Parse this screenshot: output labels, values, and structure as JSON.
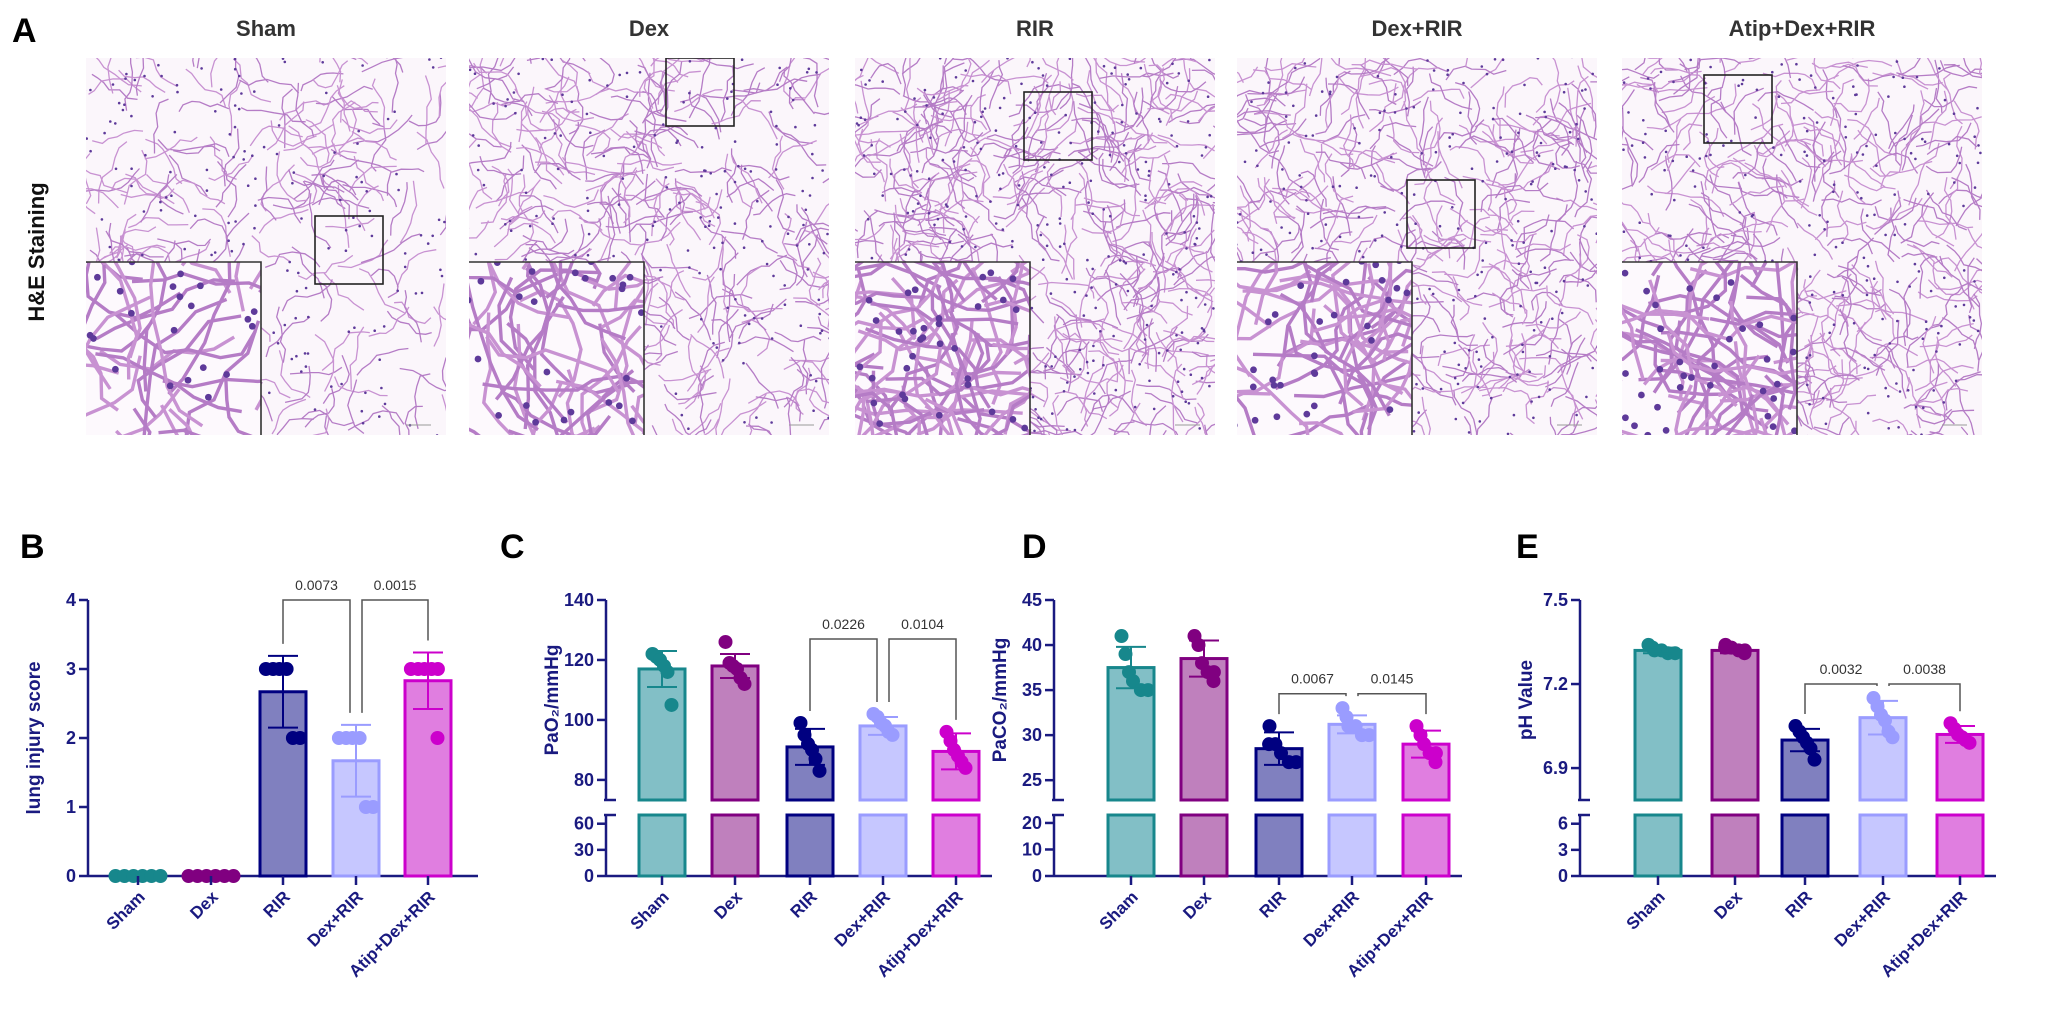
{
  "panel_labels": {
    "a": "A",
    "b": "B",
    "c": "C",
    "d": "D",
    "e": "E"
  },
  "histology": {
    "row_label": "H&E Staining",
    "groups": [
      "Sham",
      "Dex",
      "RIR",
      "Dex+RIR",
      "Atip+Dex+RIR"
    ]
  },
  "colors": {
    "axis": "#1a1a80",
    "groups": [
      {
        "stroke": "#17878c",
        "fill": "#82bfc6"
      },
      {
        "stroke": "#800080",
        "fill": "#bf80bd"
      },
      {
        "stroke": "#000080",
        "fill": "#8080bf"
      },
      {
        "stroke": "#9a9cff",
        "fill": "#c6c7ff"
      },
      {
        "stroke": "#cc00cc",
        "fill": "#e07ee0"
      }
    ]
  },
  "chart_data": [
    {
      "type": "bar",
      "panel": "B",
      "ylabel": "lung injury score",
      "categories": [
        "Sham",
        "Dex",
        "RIR",
        "Dex+RIR",
        "Atip+Dex+RIR"
      ],
      "values": [
        0,
        0,
        2.67,
        1.67,
        2.83
      ],
      "sd": [
        0,
        0,
        0.52,
        0.52,
        0.41
      ],
      "points": [
        [
          0,
          0,
          0,
          0,
          0,
          0
        ],
        [
          0,
          0,
          0,
          0,
          0,
          0
        ],
        [
          3,
          3,
          3,
          3,
          2,
          2
        ],
        [
          2,
          2,
          2,
          2,
          1,
          1
        ],
        [
          3,
          3,
          3,
          3,
          3,
          2
        ]
      ],
      "ylim": [
        0,
        4
      ],
      "yticks": [
        "0",
        "1",
        "2",
        "3",
        "4"
      ],
      "ytick_values": [
        0,
        1,
        2,
        3,
        4
      ],
      "axis_break": null,
      "comparisons": [
        {
          "from": "RIR",
          "to": "Dex+RIR",
          "p": "0.0073"
        },
        {
          "from": "Dex+RIR",
          "to": "Atip+Dex+RIR",
          "p": "0.0015"
        }
      ]
    },
    {
      "type": "bar",
      "panel": "C",
      "ylabel": "PaO₂/mmHg",
      "categories": [
        "Sham",
        "Dex",
        "RIR",
        "Dex+RIR",
        "Atip+Dex+RIR"
      ],
      "values": [
        117,
        118,
        91,
        98,
        89.5
      ],
      "sd": [
        6,
        4,
        6,
        3,
        6
      ],
      "points": [
        [
          122,
          121,
          120,
          118,
          116,
          105
        ],
        [
          126,
          119,
          118,
          117,
          114,
          112
        ],
        [
          99,
          95,
          92,
          90,
          87,
          83
        ],
        [
          102,
          101,
          99,
          98,
          96,
          95
        ],
        [
          96,
          93,
          90,
          88,
          86,
          84
        ]
      ],
      "ylim": [
        0,
        140
      ],
      "yticks": [
        "0",
        "30",
        "60",
        "80",
        "100",
        "120",
        "140"
      ],
      "ytick_values": [
        0,
        30,
        60,
        80,
        100,
        120,
        140
      ],
      "axis_break": {
        "lower": [
          0,
          70
        ],
        "upper": [
          73.3,
          140
        ]
      },
      "comparisons": [
        {
          "from": "RIR",
          "to": "Dex+RIR",
          "p": "0.0226"
        },
        {
          "from": "Dex+RIR",
          "to": "Atip+Dex+RIR",
          "p": "0.0104"
        }
      ]
    },
    {
      "type": "bar",
      "panel": "D",
      "ylabel": "PaCO₂/mmHg",
      "categories": [
        "Sham",
        "Dex",
        "RIR",
        "Dex+RIR",
        "Atip+Dex+RIR"
      ],
      "values": [
        37.5,
        38.5,
        28.5,
        31.2,
        29
      ],
      "sd": [
        2.3,
        2,
        1.8,
        1,
        1.5
      ],
      "points": [
        [
          41,
          39,
          37,
          36,
          35,
          35
        ],
        [
          41,
          40,
          38,
          37,
          37,
          36
        ],
        [
          31,
          29,
          29,
          28,
          27,
          27
        ],
        [
          33,
          32,
          31,
          31,
          30,
          30
        ],
        [
          31,
          30,
          29,
          28,
          28,
          27
        ]
      ],
      "ylim": [
        0,
        45
      ],
      "yticks": [
        "0",
        "10",
        "20",
        "25",
        "30",
        "35",
        "40",
        "45"
      ],
      "ytick_values": [
        0,
        10,
        20,
        25,
        30,
        35,
        40,
        45
      ],
      "axis_break": {
        "lower": [
          0,
          23
        ],
        "upper": [
          22.8,
          45
        ]
      },
      "comparisons": [
        {
          "from": "RIR",
          "to": "Dex+RIR",
          "p": "0.0067"
        },
        {
          "from": "Dex+RIR",
          "to": "Atip+Dex+RIR",
          "p": "0.0145"
        }
      ]
    },
    {
      "type": "bar",
      "panel": "E",
      "ylabel": "pH Value",
      "categories": [
        "Sham",
        "Dex",
        "RIR",
        "Dex+RIR",
        "Atip+Dex+RIR"
      ],
      "values": [
        7.32,
        7.32,
        7.0,
        7.08,
        7.02
      ],
      "sd": [
        0.01,
        0.01,
        0.04,
        0.06,
        0.03
      ],
      "points": [
        [
          7.34,
          7.33,
          7.32,
          7.32,
          7.31,
          7.31
        ],
        [
          7.34,
          7.33,
          7.33,
          7.32,
          7.32,
          7.31
        ],
        [
          7.05,
          7.03,
          7.01,
          6.99,
          6.97,
          6.93
        ],
        [
          7.15,
          7.12,
          7.09,
          7.07,
          7.03,
          7.01
        ],
        [
          7.06,
          7.04,
          7.02,
          7.01,
          7.0,
          6.99
        ]
      ],
      "ylim": [
        0,
        7.5
      ],
      "yticks": [
        "0",
        "3",
        "6",
        "6.9",
        "7.2",
        "7.5"
      ],
      "ytick_values": [
        0,
        3,
        6,
        6.9,
        7.2,
        7.5
      ],
      "axis_break": {
        "lower": [
          0,
          7
        ],
        "upper": [
          6.786,
          7.5
        ]
      },
      "comparisons": [
        {
          "from": "RIR",
          "to": "Dex+RIR",
          "p": "0.0032"
        },
        {
          "from": "Dex+RIR",
          "to": "Atip+Dex+RIR",
          "p": "0.0038"
        }
      ]
    }
  ]
}
